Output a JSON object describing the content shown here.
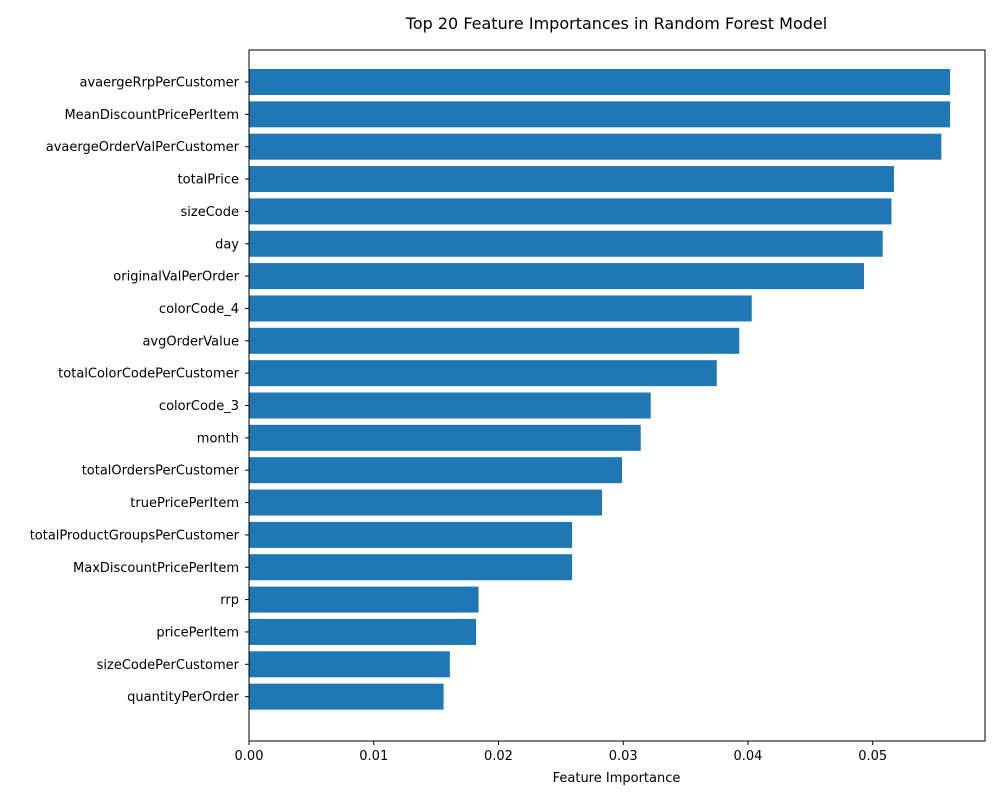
{
  "chart_data": {
    "type": "bar",
    "orientation": "horizontal",
    "title": "Top 20 Feature Importances in Random Forest Model",
    "xlabel": "Feature Importance",
    "ylabel": "",
    "xlim": [
      0,
      0.059
    ],
    "xticks": [
      0.0,
      0.01,
      0.02,
      0.03,
      0.04,
      0.05
    ],
    "xtick_labels": [
      "0.00",
      "0.01",
      "0.02",
      "0.03",
      "0.04",
      "0.05"
    ],
    "grid": false,
    "bar_color": "#1f77b4",
    "categories": [
      "avaergeRrpPerCustomer",
      "MeanDiscountPricePerItem",
      "avaergeOrderValPerCustomer",
      "totalPrice",
      "sizeCode",
      "day",
      "originalValPerOrder",
      "colorCode_4",
      "avgOrderValue",
      "totalColorCodePerCustomer",
      "colorCode_3",
      "month",
      "totalOrdersPerCustomer",
      "truePricePerItem",
      "totalProductGroupsPerCustomer",
      "MaxDiscountPricePerItem",
      "rrp",
      "pricePerItem",
      "sizeCodePerCustomer",
      "quantityPerOrder"
    ],
    "values": [
      0.0562,
      0.0562,
      0.0555,
      0.0517,
      0.0515,
      0.0508,
      0.0493,
      0.0403,
      0.0393,
      0.0375,
      0.0322,
      0.0314,
      0.0299,
      0.0283,
      0.0259,
      0.0259,
      0.0184,
      0.0182,
      0.0161,
      0.0156
    ]
  }
}
